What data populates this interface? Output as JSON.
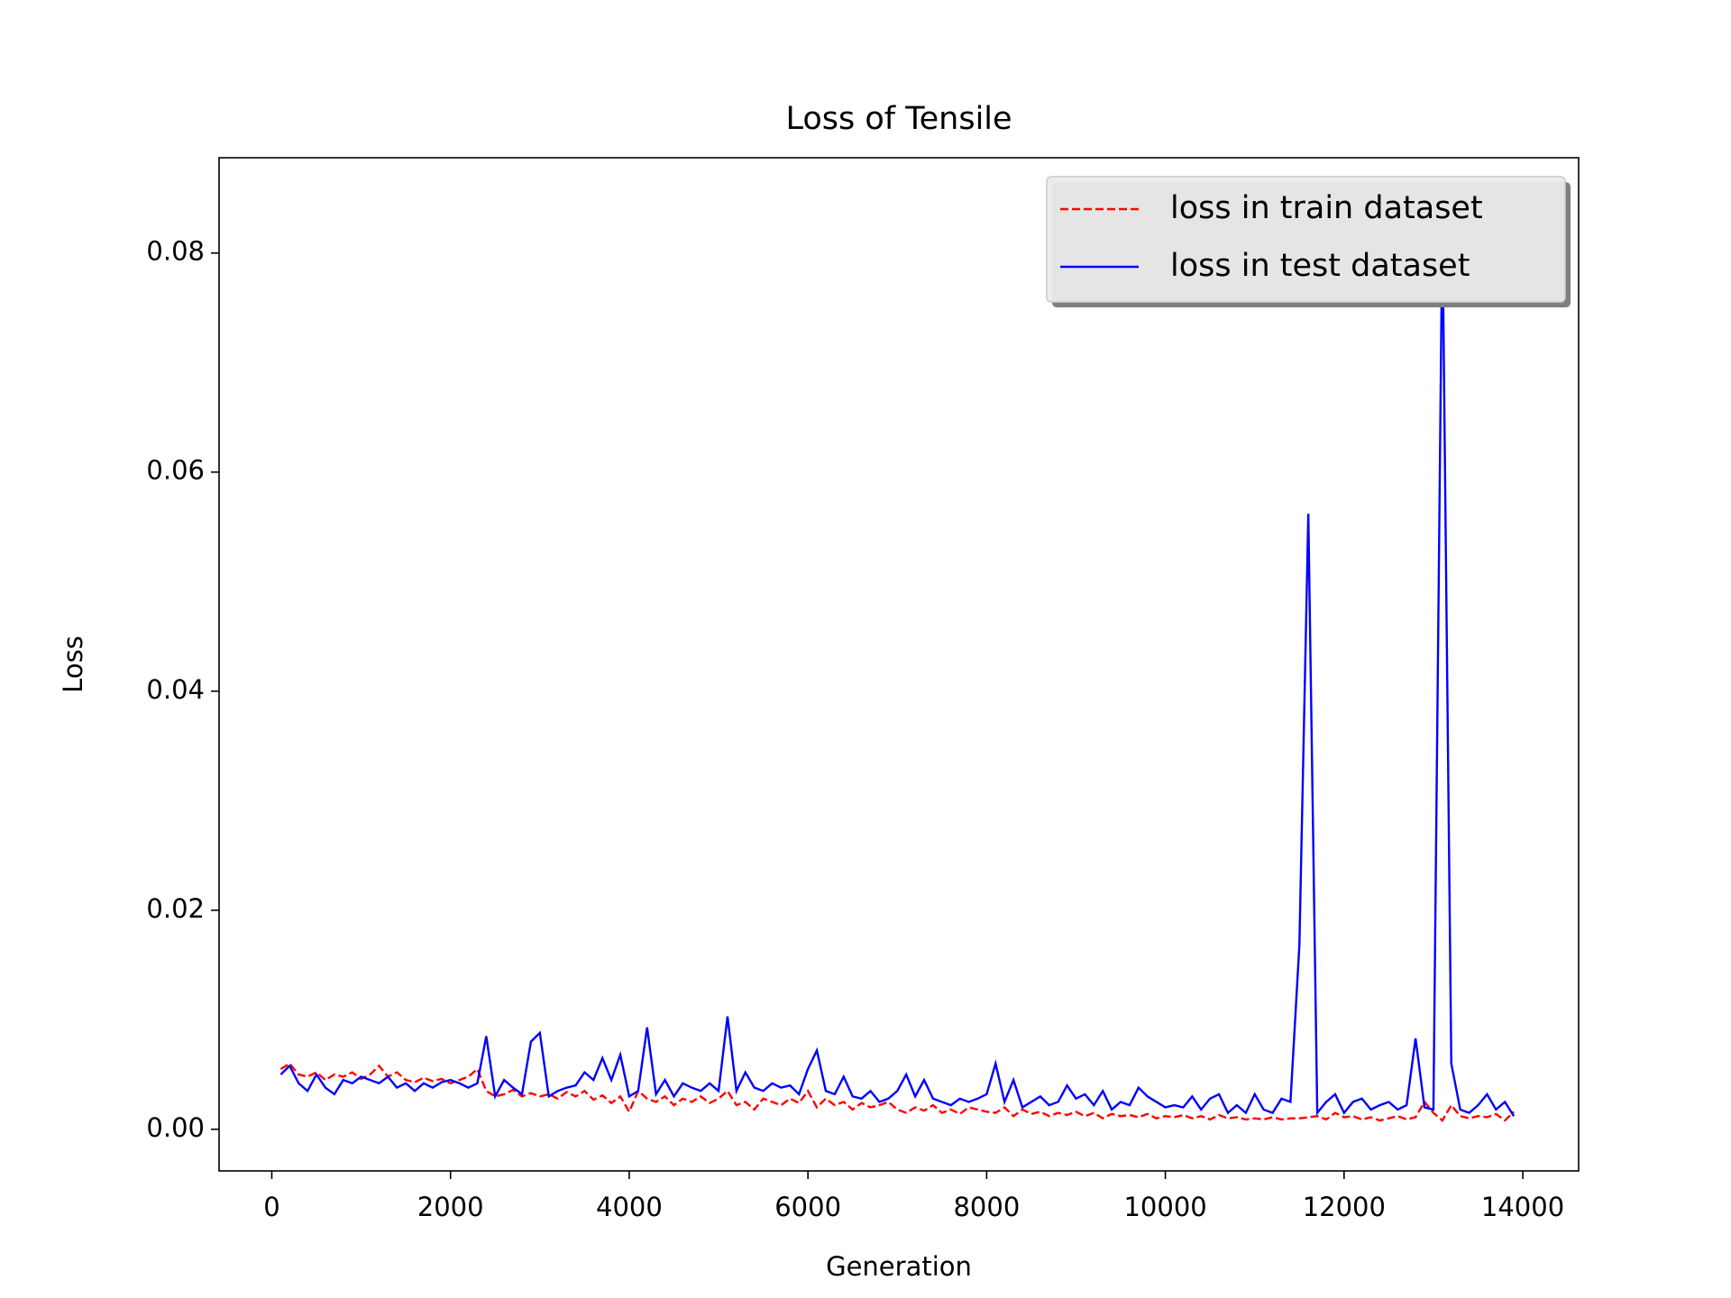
{
  "chart_data": {
    "type": "line",
    "title": "Loss of Tensile",
    "x_label": "Generation",
    "y_label": "Loss",
    "x": [
      100,
      200,
      300,
      400,
      500,
      600,
      700,
      800,
      900,
      1000,
      1100,
      1200,
      1300,
      1400,
      1500,
      1600,
      1700,
      1800,
      1900,
      2000,
      2100,
      2200,
      2300,
      2400,
      2500,
      2600,
      2700,
      2800,
      2900,
      3000,
      3100,
      3200,
      3300,
      3400,
      3500,
      3600,
      3700,
      3800,
      3900,
      4000,
      4100,
      4200,
      4300,
      4400,
      4500,
      4600,
      4700,
      4800,
      4900,
      5000,
      5100,
      5200,
      5300,
      5400,
      5500,
      5600,
      5700,
      5800,
      5900,
      6000,
      6100,
      6200,
      6300,
      6400,
      6500,
      6600,
      6700,
      6800,
      6900,
      7000,
      7100,
      7200,
      7300,
      7400,
      7500,
      7600,
      7700,
      7800,
      7900,
      8000,
      8100,
      8200,
      8300,
      8400,
      8500,
      8600,
      8700,
      8800,
      8900,
      9000,
      9100,
      9200,
      9300,
      9400,
      9500,
      9600,
      9700,
      9800,
      9900,
      10000,
      10100,
      10200,
      10300,
      10400,
      10500,
      10600,
      10700,
      10800,
      10900,
      11000,
      11100,
      11200,
      11300,
      11400,
      11500,
      11600,
      11700,
      11800,
      11900,
      12000,
      12100,
      12200,
      12300,
      12400,
      12500,
      12600,
      12700,
      12800,
      12900,
      13000,
      13100,
      13200,
      13300,
      13400,
      13500,
      13600,
      13700,
      13800,
      13900
    ],
    "series": [
      {
        "name": "loss in train dataset",
        "color": "#ff0000",
        "dash": true,
        "values": [
          0.0055,
          0.006,
          0.005,
          0.0048,
          0.0052,
          0.0045,
          0.005,
          0.0048,
          0.0052,
          0.0046,
          0.005,
          0.0058,
          0.0048,
          0.0052,
          0.0045,
          0.0043,
          0.0047,
          0.0044,
          0.0046,
          0.0042,
          0.0045,
          0.0048,
          0.0055,
          0.0035,
          0.003,
          0.0032,
          0.0036,
          0.003,
          0.0033,
          0.003,
          0.0032,
          0.0028,
          0.0034,
          0.003,
          0.0035,
          0.0027,
          0.0031,
          0.0024,
          0.003,
          0.0016,
          0.0035,
          0.0028,
          0.0025,
          0.003,
          0.0022,
          0.0028,
          0.0025,
          0.003,
          0.0024,
          0.0028,
          0.0035,
          0.0022,
          0.0025,
          0.0018,
          0.0028,
          0.0025,
          0.0022,
          0.0028,
          0.0024,
          0.0035,
          0.002,
          0.0028,
          0.0022,
          0.0025,
          0.0018,
          0.0024,
          0.002,
          0.0022,
          0.0025,
          0.0018,
          0.0015,
          0.002,
          0.0017,
          0.0022,
          0.0015,
          0.0018,
          0.0014,
          0.002,
          0.0018,
          0.0016,
          0.0015,
          0.002,
          0.0012,
          0.0018,
          0.0014,
          0.0016,
          0.0012,
          0.0015,
          0.0013,
          0.0016,
          0.0012,
          0.0015,
          0.001,
          0.0014,
          0.0012,
          0.0013,
          0.0011,
          0.0014,
          0.001,
          0.0012,
          0.0011,
          0.0013,
          0.001,
          0.0012,
          0.0009,
          0.0013,
          0.001,
          0.0011,
          0.0009,
          0.001,
          0.0009,
          0.0011,
          0.0009,
          0.001,
          0.001,
          0.0011,
          0.0012,
          0.0009,
          0.0015,
          0.0011,
          0.0012,
          0.0009,
          0.0011,
          0.0008,
          0.001,
          0.0012,
          0.0009,
          0.0011,
          0.0025,
          0.0015,
          0.0008,
          0.0022,
          0.0012,
          0.001,
          0.0012,
          0.0011,
          0.0014,
          0.0008,
          0.0016
        ]
      },
      {
        "name": "loss in test dataset",
        "color": "#0000ff",
        "dash": false,
        "values": [
          0.005,
          0.0058,
          0.0042,
          0.0035,
          0.005,
          0.0038,
          0.0032,
          0.0045,
          0.0042,
          0.0048,
          0.0045,
          0.0042,
          0.0048,
          0.0038,
          0.0042,
          0.0035,
          0.0042,
          0.0038,
          0.0043,
          0.0045,
          0.0042,
          0.0038,
          0.0042,
          0.0085,
          0.003,
          0.0045,
          0.0038,
          0.0032,
          0.008,
          0.0088,
          0.003,
          0.0035,
          0.0038,
          0.004,
          0.0052,
          0.0045,
          0.0065,
          0.0045,
          0.0068,
          0.003,
          0.0035,
          0.0093,
          0.0032,
          0.0045,
          0.003,
          0.0042,
          0.0038,
          0.0035,
          0.0042,
          0.0035,
          0.0103,
          0.0035,
          0.0052,
          0.0038,
          0.0035,
          0.0042,
          0.0038,
          0.004,
          0.0032,
          0.0055,
          0.0072,
          0.0035,
          0.0032,
          0.0048,
          0.003,
          0.0028,
          0.0035,
          0.0025,
          0.0028,
          0.0035,
          0.005,
          0.003,
          0.0045,
          0.0028,
          0.0025,
          0.0022,
          0.0028,
          0.0025,
          0.0028,
          0.0032,
          0.006,
          0.0025,
          0.0045,
          0.002,
          0.0025,
          0.003,
          0.0022,
          0.0025,
          0.004,
          0.0028,
          0.0032,
          0.0022,
          0.0035,
          0.0018,
          0.0025,
          0.0022,
          0.0038,
          0.003,
          0.0025,
          0.002,
          0.0022,
          0.002,
          0.003,
          0.0018,
          0.0028,
          0.0032,
          0.0015,
          0.0022,
          0.0015,
          0.0032,
          0.0018,
          0.0015,
          0.0028,
          0.0025,
          0.0168,
          0.0562,
          0.0015,
          0.0025,
          0.0032,
          0.0015,
          0.0025,
          0.0028,
          0.0018,
          0.0022,
          0.0025,
          0.0018,
          0.0022,
          0.0083,
          0.002,
          0.0018,
          0.083,
          0.006,
          0.0018,
          0.0015,
          0.0022,
          0.0032,
          0.0018,
          0.0025,
          0.0012
        ]
      }
    ],
    "xlim": [
      -590,
      14625
    ],
    "ylim": [
      -0.0038,
      0.0887
    ],
    "xticks": [
      0,
      2000,
      4000,
      6000,
      8000,
      10000,
      12000,
      14000
    ],
    "yticks": [
      {
        "value": 0,
        "label": "0.00"
      },
      0.02,
      0.04,
      0.06,
      0.08
    ],
    "legend": "upper right",
    "grid": false
  }
}
